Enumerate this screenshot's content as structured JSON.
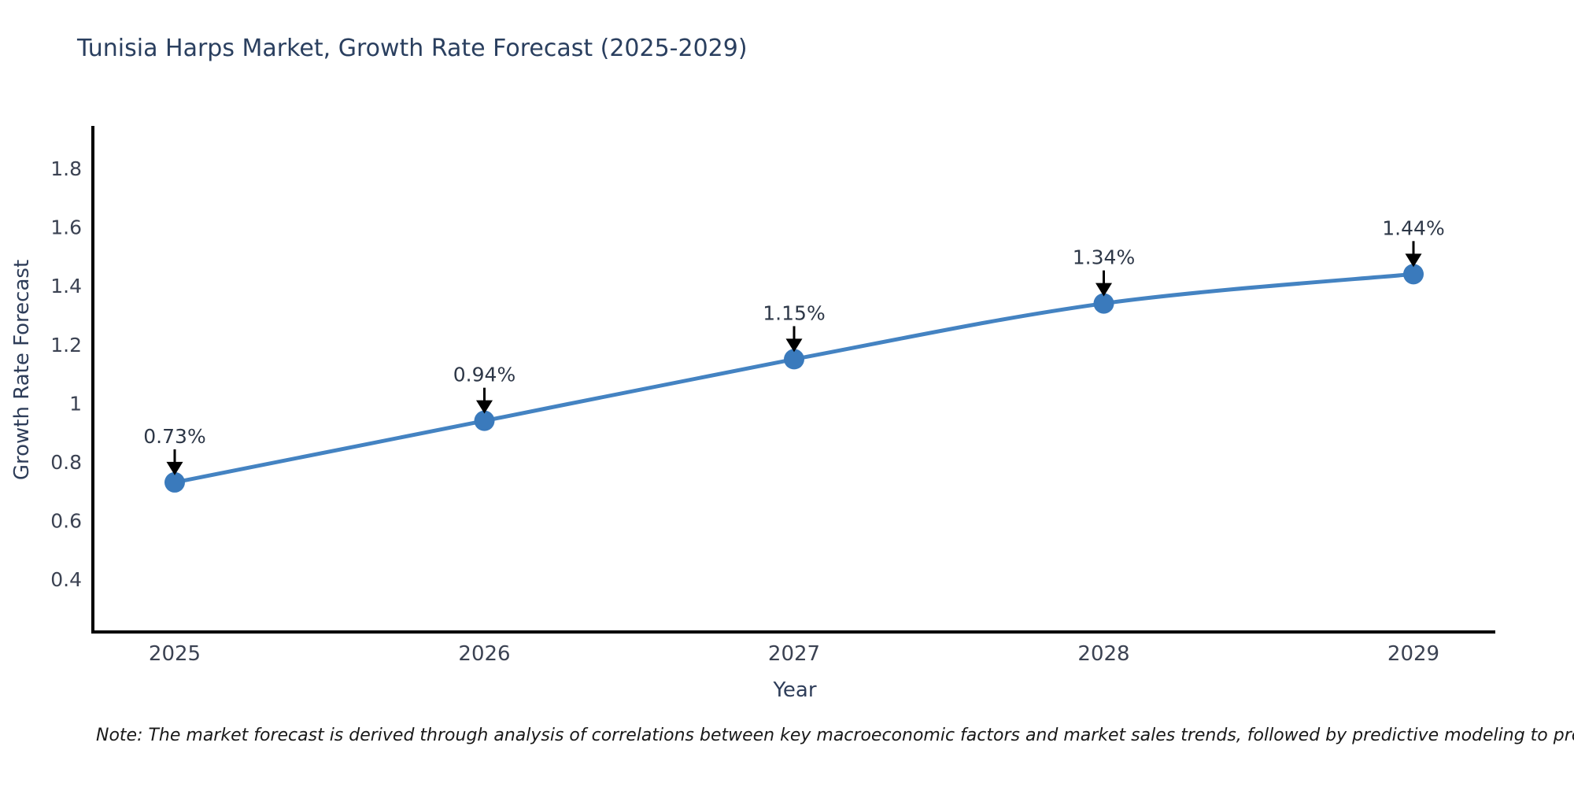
{
  "chart": {
    "title": "Tunisia Harps Market, Growth Rate Forecast (2025-2029)",
    "xlabel": "Year",
    "ylabel": "Growth Rate Forecast",
    "note": "Note: The market forecast is derived through analysis of correlations between key macroeconomic factors and market sales trends, followed by predictive modeling to project future sales"
  },
  "chart_data": {
    "type": "line",
    "title": "Tunisia Harps Market, Growth Rate Forecast (2025-2029)",
    "xlabel": "Year",
    "ylabel": "Growth Rate Forecast",
    "x": [
      2025,
      2026,
      2027,
      2028,
      2029
    ],
    "values": [
      0.73,
      0.94,
      1.15,
      1.34,
      1.44
    ],
    "point_labels": [
      "0.73%",
      "0.94%",
      "1.15%",
      "1.34%",
      "1.44%"
    ],
    "yticks": [
      0.4,
      0.6,
      0.8,
      1,
      1.2,
      1.4,
      1.6,
      1.8
    ],
    "ylim": [
      0.22,
      1.94
    ],
    "grid": false,
    "legend_position": "none",
    "line_shape": "spline",
    "line_color": "#4483c2",
    "marker_color": "#3a7abc",
    "annotation_arrow_color": "#000000",
    "axis_spine_color": "#000000"
  }
}
